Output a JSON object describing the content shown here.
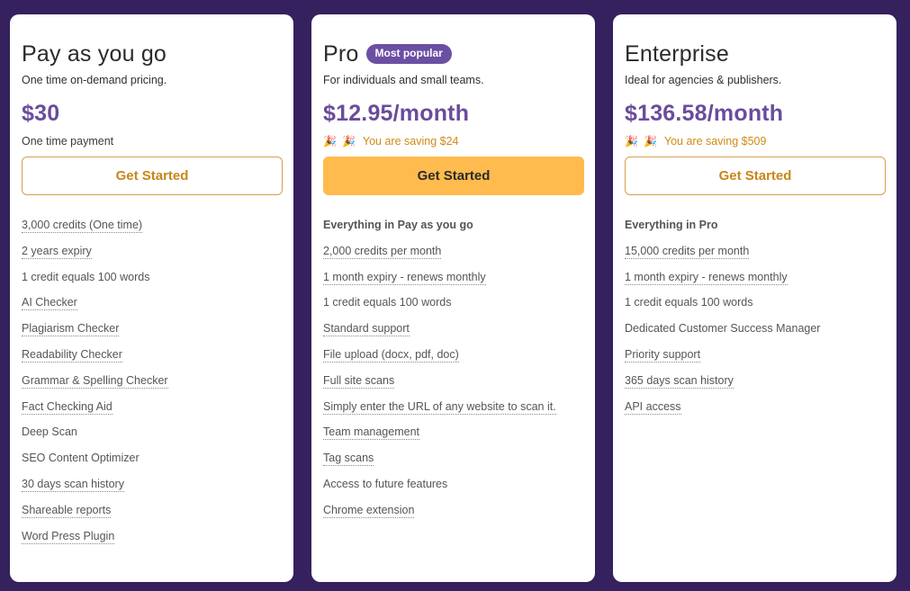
{
  "plans": [
    {
      "title": "Pay as you go",
      "subtitle": "One time on-demand pricing.",
      "price": "$30",
      "note": "One time payment",
      "cta": "Get Started",
      "features": [
        "3,000 credits (One time)",
        "2 years expiry",
        "1 credit equals 100 words",
        "AI Checker",
        "Plagiarism Checker",
        "Readability Checker",
        "Grammar & Spelling Checker",
        "Fact Checking Aid",
        "Deep Scan",
        "SEO Content Optimizer",
        "30 days scan history",
        "Shareable reports",
        "Word Press Plugin"
      ]
    },
    {
      "title": "Pro",
      "badge": "Most popular",
      "subtitle": "For individuals and small teams.",
      "price": "$12.95/month",
      "saving": "You are saving $24",
      "cta": "Get Started",
      "features": [
        "Everything in Pay as you go",
        "2,000 credits per month",
        "1 month expiry - renews monthly",
        "1 credit equals 100 words",
        "Standard support",
        "File upload (docx, pdf, doc)",
        "Full site scans",
        "Simply enter the URL of any website to scan it.",
        "Team management",
        "Tag scans",
        "Access to future features",
        "Chrome extension"
      ]
    },
    {
      "title": "Enterprise",
      "subtitle": "Ideal for agencies & publishers.",
      "price": "$136.58/month",
      "saving": "You are saving $509",
      "cta": "Get Started",
      "features": [
        "Everything in Pro",
        "15,000 credits per month",
        "1 month expiry - renews monthly",
        "1 credit equals 100 words",
        "Dedicated Customer Success Manager",
        "Priority support",
        "365 days scan history",
        "API access"
      ]
    }
  ],
  "icons": {
    "saving": "party-popper-icon",
    "saving_glyph": "🎉"
  },
  "colors": {
    "background": "#34215e",
    "accent": "#6a4c9c",
    "cta": "#ffbb4e",
    "cta_text": "#c8861a",
    "saving": "#d08a16"
  }
}
